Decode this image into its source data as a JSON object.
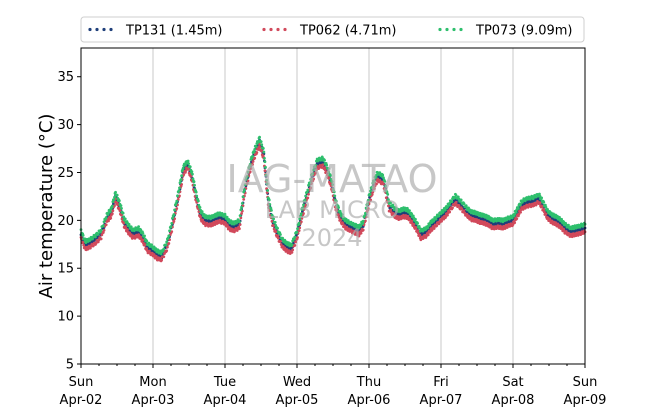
{
  "chart_data": {
    "type": "line",
    "title": "",
    "xlabel": "",
    "ylabel": "Air temperature (°C)",
    "ylim": [
      5,
      38
    ],
    "xlim": [
      0,
      7
    ],
    "yticks": [
      5,
      10,
      15,
      20,
      25,
      30,
      35
    ],
    "xticks": [
      {
        "day": "Sun",
        "date": "Apr-02"
      },
      {
        "day": "Mon",
        "date": "Apr-03"
      },
      {
        "day": "Tue",
        "date": "Apr-04"
      },
      {
        "day": "Wed",
        "date": "Apr-05"
      },
      {
        "day": "Thu",
        "date": "Apr-06"
      },
      {
        "day": "Fri",
        "date": "Apr-07"
      },
      {
        "day": "Sat",
        "date": "Apr-08"
      },
      {
        "day": "Sun",
        "date": "Apr-09"
      }
    ],
    "grid": "vertical",
    "legend_position": "top",
    "watermark": [
      "IAG-MATAO",
      "LAB MICRO",
      "2024"
    ],
    "series": [
      {
        "name": "TP131 (1.45m)",
        "color": "#1f3f7a",
        "offset": 0.0,
        "x": [
          0,
          0.06,
          0.12,
          0.2,
          0.28,
          0.36,
          0.42,
          0.48,
          0.54,
          0.6,
          0.66,
          0.72,
          0.8,
          0.86,
          0.92,
          1.0,
          1.06,
          1.12,
          1.2,
          1.28,
          1.36,
          1.42,
          1.48,
          1.54,
          1.6,
          1.66,
          1.72,
          1.8,
          1.86,
          1.92,
          2.0,
          2.06,
          2.12,
          2.2,
          2.28,
          2.36,
          2.42,
          2.48,
          2.54,
          2.6,
          2.66,
          2.72,
          2.8,
          2.86,
          2.92,
          3.0,
          3.06,
          3.12,
          3.2,
          3.28,
          3.36,
          3.42,
          3.48,
          3.54,
          3.6,
          3.66,
          3.72,
          3.8,
          3.86,
          3.92,
          4.0,
          4.06,
          4.12,
          4.2,
          4.28,
          4.36,
          4.42,
          4.48,
          4.54,
          4.6,
          4.66,
          4.72,
          4.8,
          4.86,
          4.92,
          5.0,
          5.06,
          5.12,
          5.2,
          5.28,
          5.36,
          5.42,
          5.48,
          5.54,
          5.6,
          5.66,
          5.72,
          5.8,
          5.86,
          5.92,
          6.0,
          6.06,
          6.12,
          6.2,
          6.28,
          6.36,
          6.42,
          6.48,
          6.54,
          6.6,
          6.66,
          6.72,
          6.8,
          6.86,
          6.92,
          7.0
        ],
        "y": [
          18.5,
          17.4,
          17.6,
          18.0,
          18.6,
          20.2,
          20.8,
          22.5,
          21.4,
          19.8,
          19.1,
          18.6,
          18.8,
          18.2,
          17.2,
          16.8,
          16.4,
          16.2,
          17.5,
          20.0,
          22.8,
          25.2,
          25.8,
          24.6,
          22.4,
          20.6,
          20.0,
          19.9,
          20.1,
          20.3,
          20.1,
          19.5,
          19.3,
          19.6,
          23.4,
          25.9,
          27.2,
          28.3,
          26.8,
          22.1,
          20.0,
          18.8,
          17.6,
          17.2,
          17.0,
          18.5,
          20.4,
          22.1,
          24.2,
          25.9,
          26.1,
          25.2,
          23.8,
          21.6,
          20.4,
          19.7,
          19.4,
          19.1,
          18.9,
          19.5,
          22.1,
          23.6,
          24.6,
          24.2,
          21.5,
          20.8,
          20.6,
          20.8,
          20.7,
          20.1,
          19.4,
          18.5,
          18.8,
          19.4,
          19.8,
          20.4,
          20.8,
          21.4,
          22.2,
          21.6,
          20.9,
          20.5,
          20.4,
          20.2,
          20.1,
          19.9,
          19.6,
          19.7,
          19.6,
          19.8,
          20.0,
          20.8,
          21.6,
          21.9,
          22.0,
          22.3,
          21.5,
          20.6,
          20.2,
          20.0,
          19.7,
          19.2,
          18.8,
          18.9,
          19.0,
          19.2
        ]
      },
      {
        "name": "TP062 (4.71m)",
        "color": "#d1495b",
        "offset": -0.35,
        "x": [
          0,
          0.06,
          0.12,
          0.2,
          0.28,
          0.36,
          0.42,
          0.48,
          0.54,
          0.6,
          0.66,
          0.72,
          0.8,
          0.86,
          0.92,
          1.0,
          1.06,
          1.12,
          1.2,
          1.28,
          1.36,
          1.42,
          1.48,
          1.54,
          1.6,
          1.66,
          1.72,
          1.8,
          1.86,
          1.92,
          2.0,
          2.06,
          2.12,
          2.2,
          2.28,
          2.36,
          2.42,
          2.48,
          2.54,
          2.6,
          2.66,
          2.72,
          2.8,
          2.86,
          2.92,
          3.0,
          3.06,
          3.12,
          3.2,
          3.28,
          3.36,
          3.42,
          3.48,
          3.54,
          3.6,
          3.66,
          3.72,
          3.8,
          3.86,
          3.92,
          4.0,
          4.06,
          4.12,
          4.2,
          4.28,
          4.36,
          4.42,
          4.48,
          4.54,
          4.6,
          4.66,
          4.72,
          4.8,
          4.86,
          4.92,
          5.0,
          5.06,
          5.12,
          5.2,
          5.28,
          5.36,
          5.42,
          5.48,
          5.54,
          5.6,
          5.66,
          5.72,
          5.8,
          5.86,
          5.92,
          6.0,
          6.06,
          6.12,
          6.2,
          6.28,
          6.36,
          6.42,
          6.48,
          6.54,
          6.6,
          6.66,
          6.72,
          6.8,
          6.86,
          6.92,
          7.0
        ],
        "y": [
          18.1,
          17.0,
          17.2,
          17.6,
          18.2,
          19.9,
          20.4,
          22.1,
          21.0,
          19.4,
          18.7,
          18.2,
          18.4,
          17.8,
          16.8,
          16.4,
          16.0,
          15.9,
          17.1,
          19.6,
          22.4,
          24.8,
          25.5,
          24.2,
          22.0,
          20.2,
          19.6,
          19.5,
          19.7,
          19.9,
          19.7,
          19.1,
          18.9,
          19.2,
          23.0,
          25.5,
          26.8,
          27.8,
          26.4,
          21.7,
          19.6,
          18.4,
          17.2,
          16.8,
          16.6,
          18.1,
          20.0,
          21.7,
          23.8,
          25.5,
          25.7,
          24.8,
          23.4,
          21.2,
          20.0,
          19.3,
          19.0,
          18.7,
          18.5,
          19.1,
          21.7,
          23.2,
          24.2,
          23.8,
          21.1,
          20.4,
          20.2,
          20.4,
          20.3,
          19.7,
          19.0,
          18.1,
          18.4,
          19.0,
          19.4,
          20.0,
          20.4,
          21.0,
          21.8,
          21.2,
          20.5,
          20.1,
          20.0,
          19.8,
          19.7,
          19.5,
          19.2,
          19.3,
          19.2,
          19.4,
          19.6,
          20.4,
          21.2,
          21.5,
          21.6,
          21.9,
          21.1,
          20.2,
          19.8,
          19.6,
          19.3,
          18.8,
          18.4,
          18.5,
          18.6,
          18.8
        ]
      },
      {
        "name": "TP073 (9.09m)",
        "color": "#2ebf6d",
        "offset": 0.4,
        "x": [
          0,
          0.06,
          0.12,
          0.2,
          0.28,
          0.36,
          0.42,
          0.48,
          0.54,
          0.6,
          0.66,
          0.72,
          0.8,
          0.86,
          0.92,
          1.0,
          1.06,
          1.12,
          1.2,
          1.28,
          1.36,
          1.42,
          1.48,
          1.54,
          1.6,
          1.66,
          1.72,
          1.8,
          1.86,
          1.92,
          2.0,
          2.06,
          2.12,
          2.2,
          2.28,
          2.36,
          2.42,
          2.48,
          2.54,
          2.6,
          2.66,
          2.72,
          2.8,
          2.86,
          2.92,
          3.0,
          3.06,
          3.12,
          3.2,
          3.28,
          3.36,
          3.42,
          3.48,
          3.54,
          3.6,
          3.66,
          3.72,
          3.8,
          3.86,
          3.92,
          4.0,
          4.06,
          4.12,
          4.2,
          4.28,
          4.36,
          4.42,
          4.48,
          4.54,
          4.6,
          4.66,
          4.72,
          4.8,
          4.86,
          4.92,
          5.0,
          5.06,
          5.12,
          5.2,
          5.28,
          5.36,
          5.42,
          5.48,
          5.54,
          5.6,
          5.66,
          5.72,
          5.8,
          5.86,
          5.92,
          6.0,
          6.06,
          6.12,
          6.2,
          6.28,
          6.36,
          6.42,
          6.48,
          6.54,
          6.6,
          6.66,
          6.72,
          6.8,
          6.86,
          6.92,
          7.0
        ],
        "y": [
          18.9,
          17.8,
          18.0,
          18.4,
          19.0,
          20.6,
          21.2,
          22.9,
          21.8,
          20.2,
          19.5,
          19.0,
          19.2,
          18.6,
          17.6,
          17.2,
          16.8,
          16.6,
          17.9,
          20.4,
          23.2,
          25.6,
          26.2,
          25.0,
          22.8,
          21.0,
          20.4,
          20.3,
          20.5,
          20.7,
          20.5,
          19.9,
          19.7,
          20.0,
          23.8,
          26.3,
          27.6,
          28.6,
          27.2,
          22.5,
          20.4,
          19.2,
          18.0,
          17.6,
          17.4,
          18.9,
          20.8,
          22.5,
          24.6,
          26.3,
          26.5,
          25.6,
          24.2,
          22.0,
          20.8,
          20.1,
          19.8,
          19.5,
          19.3,
          19.9,
          22.5,
          24.0,
          25.0,
          24.6,
          21.9,
          21.2,
          21.0,
          21.2,
          21.1,
          20.5,
          19.8,
          18.9,
          19.2,
          19.8,
          20.2,
          20.8,
          21.2,
          21.8,
          22.6,
          22.0,
          21.3,
          20.9,
          20.8,
          20.6,
          20.5,
          20.3,
          20.0,
          20.1,
          20.0,
          20.2,
          20.4,
          21.2,
          22.0,
          22.3,
          22.4,
          22.7,
          21.9,
          21.0,
          20.6,
          20.4,
          20.1,
          19.6,
          19.2,
          19.3,
          19.4,
          19.6
        ]
      }
    ]
  }
}
